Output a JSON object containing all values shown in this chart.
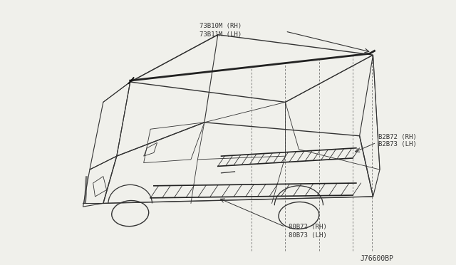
{
  "bg_color": "#f0f0eb",
  "line_color": "#333333",
  "dashed_color": "#555555",
  "label_color": "#222222",
  "diagram_code": "J76600BP",
  "labels": {
    "roof_molding": [
      "73B10M (RH)",
      "73B11M (LH)"
    ],
    "rear_upper": [
      "B2B72 (RH)",
      "B2B73 (LH)"
    ],
    "rear_lower": [
      "80B72 (RH)",
      "80B73 (LH)"
    ]
  },
  "font_size": 6.5,
  "code_font_size": 7
}
